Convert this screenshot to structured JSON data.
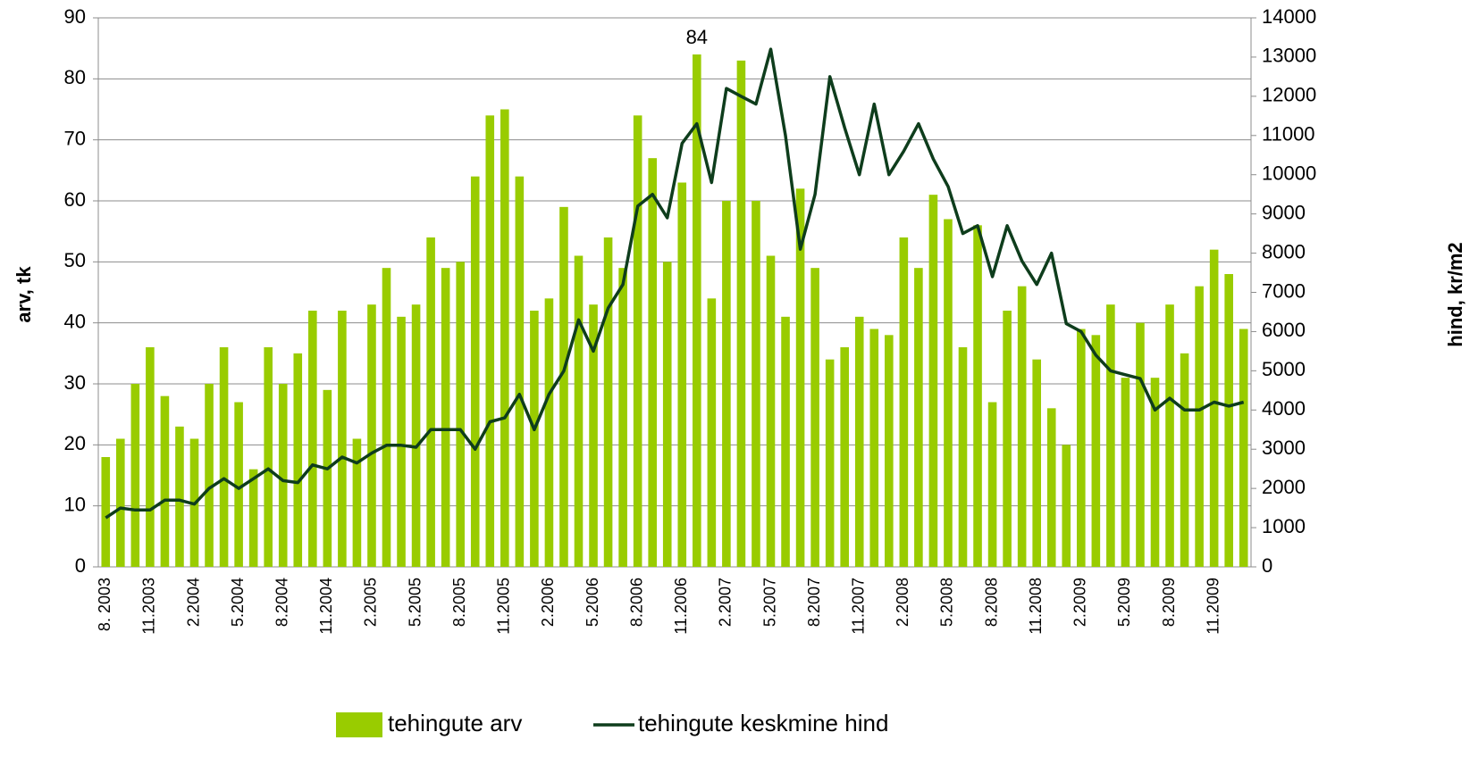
{
  "chart_data": {
    "type": "bar_line",
    "y_label": "arv, tk",
    "y2_label": "hind, kr/m2",
    "categories": [
      "8. 2003",
      null,
      null,
      "11.2003",
      null,
      null,
      "2.2004",
      null,
      null,
      "5.2004",
      null,
      null,
      "8.2004",
      null,
      null,
      "11.2004",
      null,
      null,
      "2.2005",
      null,
      null,
      "5.2005",
      null,
      null,
      "8.2005",
      null,
      null,
      "11.2005",
      null,
      null,
      "2.2006",
      null,
      null,
      "5.2006",
      null,
      null,
      "8.2006",
      null,
      null,
      "11.2006",
      null,
      null,
      "2.2007",
      null,
      null,
      "5.2007",
      null,
      null,
      "8.2007",
      null,
      null,
      "11.2007",
      null,
      null,
      "2.2008",
      null,
      null,
      "5.2008",
      null,
      null,
      "8.2008",
      null,
      null,
      "11.2008",
      null,
      null,
      "2.2009",
      null,
      null,
      "5.2009",
      null,
      null,
      "8.2009",
      null,
      null,
      "11.2009",
      null,
      null
    ],
    "series": [
      {
        "name": "tehingute arv",
        "type": "bar",
        "color": "#99cc00",
        "values": [
          18,
          21,
          30,
          36,
          28,
          23,
          21,
          30,
          36,
          27,
          16,
          36,
          30,
          35,
          42,
          29,
          42,
          21,
          43,
          49,
          41,
          43,
          54,
          49,
          50,
          64,
          74,
          75,
          64,
          42,
          44,
          59,
          51,
          43,
          54,
          49,
          74,
          67,
          50,
          63,
          84,
          44,
          60,
          83,
          60,
          51,
          41,
          62,
          49,
          34,
          36,
          41,
          39,
          38,
          54,
          49,
          61,
          57,
          36,
          56,
          27,
          42,
          46,
          34,
          26,
          20,
          39,
          38,
          43,
          31,
          40,
          31,
          43,
          35,
          46,
          52,
          48,
          39
        ],
        "value_labels": [
          null,
          null,
          null,
          null,
          null,
          null,
          null,
          null,
          null,
          null,
          null,
          null,
          null,
          null,
          null,
          null,
          null,
          null,
          null,
          null,
          null,
          null,
          null,
          null,
          null,
          null,
          null,
          null,
          null,
          null,
          null,
          null,
          null,
          null,
          null,
          null,
          null,
          null,
          null,
          null,
          "84",
          null,
          null,
          null,
          null,
          null,
          null,
          null,
          null,
          null,
          null,
          null,
          null,
          null,
          null,
          null,
          null,
          null,
          null,
          null,
          null,
          null,
          null,
          null,
          null,
          null,
          null,
          null,
          null,
          null,
          null,
          null,
          null,
          null,
          null,
          null,
          null,
          null
        ]
      },
      {
        "name": "tehingute keskmine hind",
        "type": "line",
        "axis": "y2",
        "color": "#0e3d1c",
        "values": [
          1250,
          1500,
          1450,
          1450,
          1700,
          1700,
          1600,
          2000,
          2250,
          2000,
          2250,
          2500,
          2200,
          2150,
          2600,
          2500,
          2800,
          2650,
          2900,
          3100,
          3100,
          3050,
          3500,
          3500,
          3500,
          3000,
          3700,
          3800,
          4400,
          3500,
          4400,
          5000,
          6300,
          5500,
          6600,
          7200,
          9200,
          9500,
          8900,
          10800,
          11300,
          9800,
          12200,
          12000,
          11800,
          13200,
          11000,
          8100,
          9500,
          12500,
          11200,
          10000,
          11800,
          10000,
          10600,
          11300,
          10400,
          9700,
          8500,
          8700,
          7400,
          8700,
          7800,
          7200,
          8000,
          6200,
          6000,
          5400,
          5000,
          4900,
          4800,
          4000,
          4300,
          4000,
          4000,
          4200,
          4100,
          4200
        ]
      }
    ],
    "ylim": [
      0,
      90
    ],
    "yticks": [
      0,
      10,
      20,
      30,
      40,
      50,
      60,
      70,
      80,
      90
    ],
    "y2lim": [
      0,
      14000
    ],
    "y2ticks": [
      0,
      1000,
      2000,
      3000,
      4000,
      5000,
      6000,
      7000,
      8000,
      9000,
      10000,
      11000,
      12000,
      13000,
      14000
    ],
    "grid": true,
    "legend": "bottom"
  }
}
